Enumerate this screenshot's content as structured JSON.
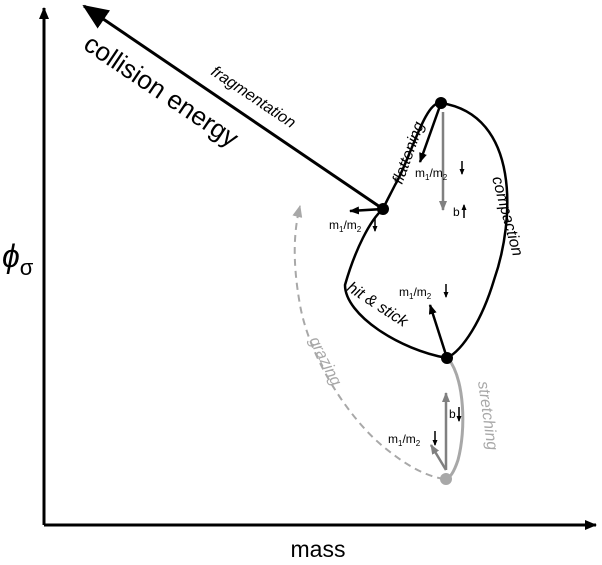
{
  "axes": {
    "x_label": "mass",
    "y_label_symbol": "ϕ",
    "y_label_subscript": "σ"
  },
  "labels": {
    "collision_energy": "collision energy",
    "fragmentation": "fragmentation",
    "flattening": "flattening",
    "compaction": "compaction",
    "hit_and_stick": "hit & stick",
    "grazing": "grazing",
    "stretching": "stretching"
  },
  "ratio": {
    "m": "m",
    "one": "1",
    "slash": "/",
    "two": "2"
  },
  "b_label": "b",
  "indicators": {
    "flattening_ratio": "down",
    "flattening_b": "up",
    "fragmentation_ratio": "down",
    "hit_stick_ratio": "down",
    "stretching_b": "down",
    "stretching_ratio": "down"
  },
  "colors": {
    "main": "#000000",
    "secondary": "#808080",
    "faded": "#a8a8a8"
  }
}
